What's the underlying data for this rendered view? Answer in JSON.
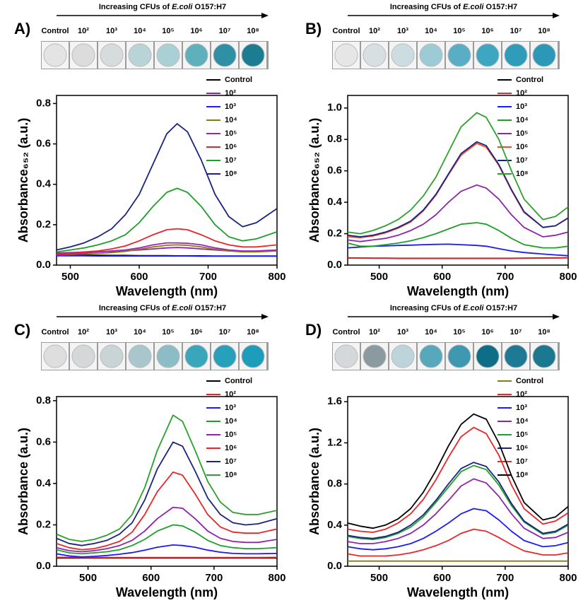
{
  "chart_data": [
    {
      "type": "line",
      "label": "A)",
      "header": [
        "Increasing CFUs of ",
        "E.coli",
        " O157:H7"
      ],
      "well_colors": [
        "#e4e4e4",
        "#dcdcdc",
        "#d6dcdc",
        "#b9d4d6",
        "#a9d0d4",
        "#5fb0bd",
        "#2f8fa5",
        "#1b7c92"
      ],
      "xlabel": "Wavelength (nm)",
      "ylabel": "Absorbance₆₅₂ (a.u.)",
      "xlim": [
        480,
        800
      ],
      "ylim": [
        0,
        0.84
      ],
      "xticks": [
        500,
        600,
        700,
        800
      ],
      "yticks": [
        {
          "value": 0,
          "label": "0.0"
        },
        {
          "value": 0.2,
          "label": "0.2"
        },
        {
          "value": 0.4,
          "label": "0.4"
        },
        {
          "value": 0.6,
          "label": "0.6"
        },
        {
          "value": 0.8,
          "label": "0.8"
        }
      ],
      "x": [
        480,
        500,
        520,
        540,
        560,
        580,
        600,
        620,
        640,
        655,
        670,
        690,
        710,
        730,
        750,
        770,
        800
      ],
      "series": [
        {
          "name": "Control",
          "color": "#000000",
          "values": [
            0.05,
            0.05,
            0.049,
            0.049,
            0.048,
            0.048,
            0.047,
            0.047,
            0.047,
            0.046,
            0.046,
            0.046,
            0.045,
            0.045,
            0.045,
            0.045,
            0.045
          ]
        },
        {
          "name": "10²",
          "color": "#8e24aa",
          "values": [
            0.06,
            0.062,
            0.064,
            0.066,
            0.068,
            0.07,
            0.075,
            0.08,
            0.085,
            0.087,
            0.085,
            0.08,
            0.075,
            0.07,
            0.068,
            0.068,
            0.07
          ]
        },
        {
          "name": "10³",
          "color": "#1a1aff",
          "values": [
            0.046,
            0.046,
            0.046,
            0.045,
            0.045,
            0.045,
            0.045,
            0.045,
            0.045,
            0.045,
            0.045,
            0.044,
            0.044,
            0.044,
            0.044,
            0.044,
            0.044
          ]
        },
        {
          "name": "10⁴",
          "color": "#8a7a10",
          "values": [
            0.05,
            0.052,
            0.055,
            0.058,
            0.062,
            0.068,
            0.078,
            0.09,
            0.098,
            0.1,
            0.098,
            0.09,
            0.078,
            0.07,
            0.065,
            0.065,
            0.07
          ]
        },
        {
          "name": "10⁵",
          "color": "#a020c0",
          "values": [
            0.05,
            0.055,
            0.06,
            0.065,
            0.07,
            0.075,
            0.085,
            0.1,
            0.11,
            0.11,
            0.108,
            0.1,
            0.085,
            0.075,
            0.07,
            0.07,
            0.075
          ]
        },
        {
          "name": "10⁶",
          "color": "#e8262a",
          "values": [
            0.055,
            0.06,
            0.065,
            0.07,
            0.08,
            0.095,
            0.12,
            0.15,
            0.175,
            0.18,
            0.175,
            0.15,
            0.12,
            0.1,
            0.09,
            0.09,
            0.1
          ]
        },
        {
          "name": "10⁷",
          "color": "#1e9e2a",
          "values": [
            0.065,
            0.075,
            0.085,
            0.1,
            0.12,
            0.15,
            0.21,
            0.29,
            0.36,
            0.38,
            0.36,
            0.29,
            0.2,
            0.14,
            0.12,
            0.13,
            0.165
          ]
        },
        {
          "name": "10⁸",
          "color": "#1a237e",
          "values": [
            0.075,
            0.09,
            0.11,
            0.14,
            0.18,
            0.25,
            0.35,
            0.5,
            0.65,
            0.7,
            0.66,
            0.52,
            0.35,
            0.24,
            0.19,
            0.21,
            0.28
          ]
        }
      ]
    },
    {
      "type": "line",
      "label": "B)",
      "header": [
        "Increasing CFUs of ",
        "E.coli",
        " O157:H7"
      ],
      "well_colors": [
        "#e6e6e6",
        "#d8dfe2",
        "#ccdde2",
        "#9ccbd6",
        "#58aec4",
        "#3ea6c0",
        "#2f9cba",
        "#2a98b6"
      ],
      "xlabel": "Wavelength (nm)",
      "ylabel": "Absorbance₆₅₂ (a.u.)",
      "xlim": [
        450,
        800
      ],
      "ylim": [
        0,
        1.08
      ],
      "xticks": [
        500,
        600,
        700,
        800
      ],
      "yticks": [
        {
          "value": 0,
          "label": "0.0"
        },
        {
          "value": 0.2,
          "label": "0.2"
        },
        {
          "value": 0.4,
          "label": "0.4"
        },
        {
          "value": 0.6,
          "label": "0.6"
        },
        {
          "value": 0.8,
          "label": "0.8"
        },
        {
          "value": 1,
          "label": "1.0"
        }
      ],
      "x": [
        450,
        470,
        490,
        510,
        530,
        550,
        570,
        590,
        610,
        630,
        655,
        670,
        690,
        710,
        730,
        760,
        780,
        800
      ],
      "series": [
        {
          "name": "Control",
          "color": "#000000",
          "values": [
            0.046,
            0.045,
            0.044,
            0.044,
            0.043,
            0.043,
            0.043,
            0.043,
            0.043,
            0.043,
            0.043,
            0.043,
            0.043,
            0.043,
            0.044,
            0.045,
            0.046,
            0.047
          ]
        },
        {
          "name": "10²",
          "color": "#e8262a",
          "values": [
            0.045,
            0.044,
            0.043,
            0.043,
            0.042,
            0.042,
            0.042,
            0.042,
            0.042,
            0.042,
            0.042,
            0.042,
            0.042,
            0.042,
            0.043,
            0.044,
            0.045,
            0.046
          ]
        },
        {
          "name": "10³",
          "color": "#1a1aff",
          "values": [
            0.11,
            0.115,
            0.12,
            0.122,
            0.125,
            0.127,
            0.13,
            0.132,
            0.133,
            0.13,
            0.125,
            0.12,
            0.105,
            0.09,
            0.08,
            0.07,
            0.065,
            0.06
          ]
        },
        {
          "name": "10⁴",
          "color": "#1e9e2a",
          "values": [
            0.14,
            0.12,
            0.12,
            0.13,
            0.14,
            0.155,
            0.175,
            0.2,
            0.23,
            0.26,
            0.27,
            0.26,
            0.22,
            0.17,
            0.13,
            0.11,
            0.11,
            0.12
          ]
        },
        {
          "name": "10⁵",
          "color": "#8e24aa",
          "values": [
            0.16,
            0.15,
            0.16,
            0.17,
            0.19,
            0.22,
            0.26,
            0.32,
            0.4,
            0.47,
            0.51,
            0.49,
            0.42,
            0.32,
            0.24,
            0.18,
            0.19,
            0.21
          ]
        },
        {
          "name": "10⁶",
          "color": "#ff4422",
          "values": [
            0.18,
            0.175,
            0.185,
            0.205,
            0.235,
            0.275,
            0.345,
            0.445,
            0.575,
            0.7,
            0.775,
            0.75,
            0.635,
            0.475,
            0.335,
            0.24,
            0.25,
            0.3
          ]
        },
        {
          "name": "10⁷",
          "color": "#1a237e",
          "values": [
            0.19,
            0.18,
            0.19,
            0.21,
            0.24,
            0.28,
            0.35,
            0.45,
            0.58,
            0.71,
            0.785,
            0.76,
            0.64,
            0.48,
            0.34,
            0.24,
            0.25,
            0.3
          ]
        },
        {
          "name": "10⁸",
          "color": "#2ca02c",
          "values": [
            0.21,
            0.2,
            0.22,
            0.25,
            0.29,
            0.35,
            0.44,
            0.56,
            0.72,
            0.88,
            0.97,
            0.94,
            0.8,
            0.6,
            0.42,
            0.29,
            0.31,
            0.37
          ]
        }
      ]
    },
    {
      "type": "line",
      "label": "C)",
      "header": [
        "Increasing CFUs of ",
        "E.coli",
        " O157:H7"
      ],
      "well_colors": [
        "#dedede",
        "#d4d8d8",
        "#c8d4d6",
        "#a8c6cc",
        "#8cbcc6",
        "#3aa6bc",
        "#27a0bc",
        "#1e9cbc"
      ],
      "xlabel": "Wavelength (nm)",
      "ylabel": "Absorbance (a.u.)",
      "xlim": [
        450,
        800
      ],
      "ylim": [
        0,
        0.82
      ],
      "xticks": [
        500,
        600,
        700,
        800
      ],
      "yticks": [
        {
          "value": 0,
          "label": "0.0"
        },
        {
          "value": 0.2,
          "label": "0.2"
        },
        {
          "value": 0.4,
          "label": "0.4"
        },
        {
          "value": 0.6,
          "label": "0.6"
        },
        {
          "value": 0.8,
          "label": "0.8"
        }
      ],
      "x": [
        450,
        470,
        490,
        510,
        530,
        550,
        570,
        590,
        610,
        635,
        650,
        670,
        690,
        710,
        730,
        750,
        770,
        800
      ],
      "series": [
        {
          "name": "Control",
          "color": "#000000",
          "values": [
            0.04,
            0.04,
            0.04,
            0.04,
            0.04,
            0.04,
            0.04,
            0.04,
            0.04,
            0.04,
            0.04,
            0.04,
            0.04,
            0.04,
            0.04,
            0.04,
            0.04,
            0.04
          ]
        },
        {
          "name": "10²",
          "color": "#e8262a",
          "values": [
            0.043,
            0.043,
            0.042,
            0.042,
            0.042,
            0.042,
            0.042,
            0.042,
            0.042,
            0.042,
            0.042,
            0.042,
            0.042,
            0.042,
            0.042,
            0.042,
            0.042,
            0.043
          ]
        },
        {
          "name": "10³",
          "color": "#1a1aff",
          "values": [
            0.06,
            0.05,
            0.045,
            0.048,
            0.052,
            0.058,
            0.066,
            0.078,
            0.092,
            0.103,
            0.1,
            0.092,
            0.078,
            0.068,
            0.062,
            0.06,
            0.06,
            0.062
          ]
        },
        {
          "name": "10⁴",
          "color": "#1e9e2a",
          "values": [
            0.08,
            0.065,
            0.06,
            0.065,
            0.07,
            0.08,
            0.1,
            0.13,
            0.17,
            0.2,
            0.195,
            0.165,
            0.125,
            0.1,
            0.09,
            0.085,
            0.085,
            0.09
          ]
        },
        {
          "name": "10⁵",
          "color": "#8e24aa",
          "values": [
            0.09,
            0.075,
            0.07,
            0.075,
            0.085,
            0.1,
            0.125,
            0.17,
            0.23,
            0.285,
            0.28,
            0.23,
            0.17,
            0.135,
            0.12,
            0.115,
            0.115,
            0.13
          ]
        },
        {
          "name": "10⁶",
          "color": "#e8262a",
          "values": [
            0.11,
            0.09,
            0.08,
            0.085,
            0.1,
            0.12,
            0.165,
            0.25,
            0.36,
            0.455,
            0.44,
            0.35,
            0.25,
            0.19,
            0.165,
            0.16,
            0.16,
            0.18
          ]
        },
        {
          "name": "10⁷",
          "color": "#1a237e",
          "values": [
            0.135,
            0.11,
            0.1,
            0.11,
            0.125,
            0.155,
            0.21,
            0.32,
            0.47,
            0.6,
            0.58,
            0.46,
            0.33,
            0.25,
            0.21,
            0.2,
            0.205,
            0.23
          ]
        },
        {
          "name": "10⁸",
          "color": "#2ca02c",
          "values": [
            0.155,
            0.13,
            0.12,
            0.13,
            0.15,
            0.18,
            0.25,
            0.38,
            0.56,
            0.73,
            0.7,
            0.56,
            0.41,
            0.31,
            0.26,
            0.25,
            0.25,
            0.27
          ]
        }
      ]
    },
    {
      "type": "line",
      "label": "D)",
      "header": [
        "Increasing CFUs of ",
        "E.coli",
        " O157:H7"
      ],
      "well_colors": [
        "#d4d8da",
        "#8a9aa0",
        "#bcd4da",
        "#58a8bc",
        "#3e98b0",
        "#0e6e88",
        "#1e7a94",
        "#1a7890"
      ],
      "xlabel": "Wavelength (nm)",
      "ylabel": "Absorbance (a.u.)",
      "xlim": [
        450,
        800
      ],
      "ylim": [
        0,
        1.65
      ],
      "xticks": [
        500,
        600,
        700,
        800
      ],
      "yticks": [
        {
          "value": 0,
          "label": "0.0"
        },
        {
          "value": 0.4,
          "label": "0.4"
        },
        {
          "value": 0.8,
          "label": "0.8"
        },
        {
          "value": 1.2,
          "label": "1.2"
        },
        {
          "value": 1.6,
          "label": "1.6"
        }
      ],
      "x": [
        450,
        470,
        490,
        510,
        530,
        550,
        570,
        590,
        610,
        630,
        650,
        670,
        690,
        710,
        730,
        760,
        780,
        800
      ],
      "series": [
        {
          "name": "Control",
          "color": "#8a7a10",
          "values": [
            0.05,
            0.05,
            0.05,
            0.05,
            0.05,
            0.05,
            0.05,
            0.05,
            0.05,
            0.05,
            0.05,
            0.05,
            0.05,
            0.05,
            0.05,
            0.05,
            0.05,
            0.05
          ]
        },
        {
          "name": "10²",
          "color": "#e8262a",
          "values": [
            0.12,
            0.1,
            0.1,
            0.1,
            0.11,
            0.13,
            0.16,
            0.2,
            0.25,
            0.32,
            0.36,
            0.34,
            0.28,
            0.21,
            0.15,
            0.11,
            0.11,
            0.13
          ]
        },
        {
          "name": "10³",
          "color": "#1a1aff",
          "values": [
            0.19,
            0.17,
            0.16,
            0.17,
            0.19,
            0.22,
            0.27,
            0.34,
            0.42,
            0.51,
            0.56,
            0.54,
            0.45,
            0.34,
            0.25,
            0.19,
            0.2,
            0.23
          ]
        },
        {
          "name": "10⁴",
          "color": "#8e24aa",
          "values": [
            0.24,
            0.22,
            0.22,
            0.24,
            0.27,
            0.32,
            0.4,
            0.51,
            0.64,
            0.78,
            0.85,
            0.81,
            0.68,
            0.51,
            0.37,
            0.27,
            0.28,
            0.33
          ]
        },
        {
          "name": "10⁵",
          "color": "#1e9e2a",
          "values": [
            0.29,
            0.27,
            0.26,
            0.28,
            0.32,
            0.38,
            0.48,
            0.62,
            0.77,
            0.92,
            0.98,
            0.94,
            0.79,
            0.59,
            0.43,
            0.31,
            0.33,
            0.4
          ]
        },
        {
          "name": "10⁶",
          "color": "#1a237e",
          "values": [
            0.3,
            0.28,
            0.27,
            0.29,
            0.33,
            0.4,
            0.5,
            0.64,
            0.8,
            0.95,
            1.01,
            0.97,
            0.82,
            0.61,
            0.44,
            0.32,
            0.34,
            0.41
          ]
        },
        {
          "name": "10⁷",
          "color": "#e8262a",
          "values": [
            0.36,
            0.34,
            0.33,
            0.36,
            0.42,
            0.51,
            0.65,
            0.84,
            1.06,
            1.26,
            1.35,
            1.29,
            1.08,
            0.79,
            0.56,
            0.41,
            0.44,
            0.52
          ]
        },
        {
          "name": "10⁸",
          "color": "#000000",
          "values": [
            0.42,
            0.39,
            0.37,
            0.4,
            0.46,
            0.56,
            0.72,
            0.93,
            1.17,
            1.38,
            1.48,
            1.43,
            1.2,
            0.88,
            0.62,
            0.45,
            0.48,
            0.58
          ]
        }
      ]
    }
  ]
}
